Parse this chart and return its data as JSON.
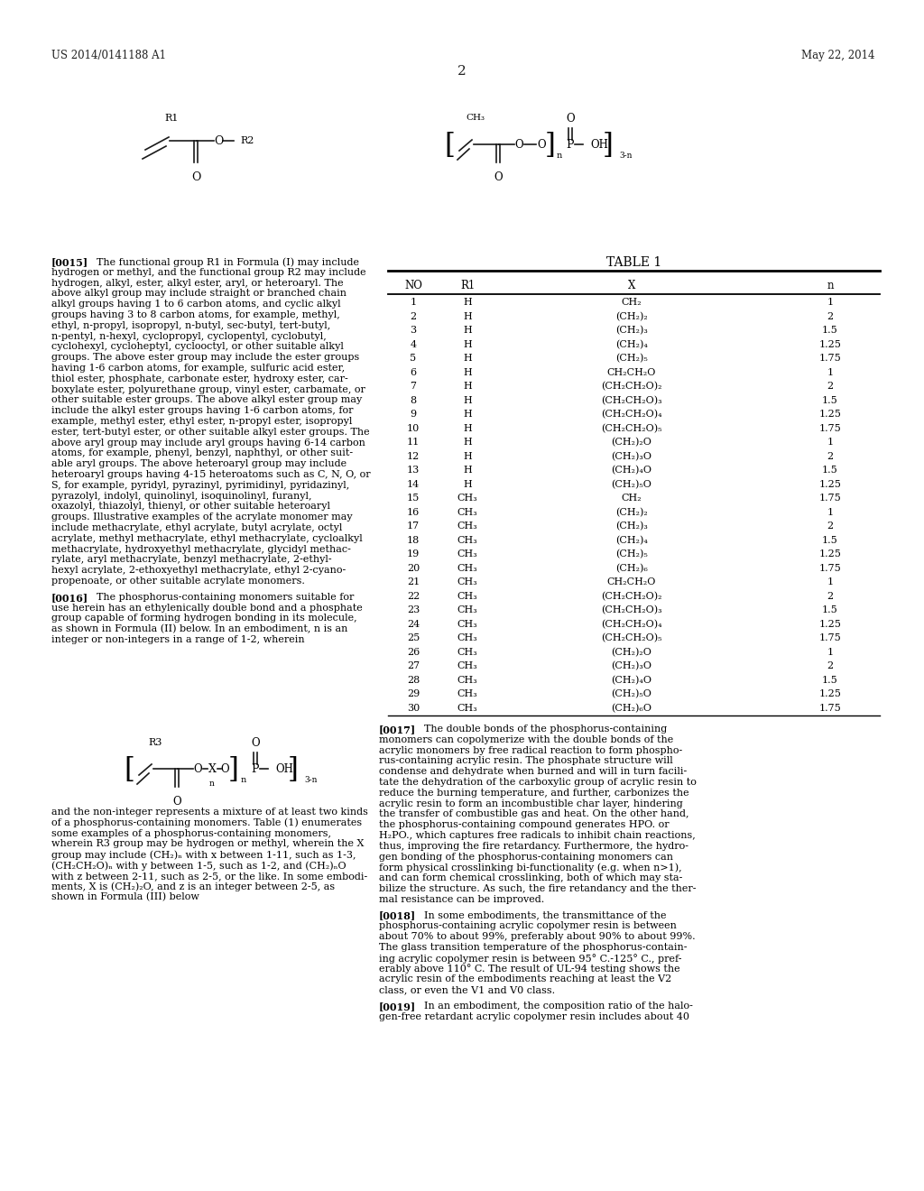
{
  "header_left": "US 2014/0141188 A1",
  "header_right": "May 22, 2014",
  "page_number": "2",
  "background": "#ffffff",
  "table_title": "TABLE 1",
  "table_headers": [
    "NO",
    "R1",
    "X",
    "n"
  ],
  "table_rows": [
    [
      "1",
      "H",
      "CH₂",
      "1"
    ],
    [
      "2",
      "H",
      "(CH₂)₂",
      "2"
    ],
    [
      "3",
      "H",
      "(CH₂)₃",
      "1.5"
    ],
    [
      "4",
      "H",
      "(CH₂)₄",
      "1.25"
    ],
    [
      "5",
      "H",
      "(CH₂)₅",
      "1.75"
    ],
    [
      "6",
      "H",
      "CH₂CH₂O",
      "1"
    ],
    [
      "7",
      "H",
      "(CH₂CH₂O)₂",
      "2"
    ],
    [
      "8",
      "H",
      "(CH₂CH₂O)₃",
      "1.5"
    ],
    [
      "9",
      "H",
      "(CH₂CH₂O)₄",
      "1.25"
    ],
    [
      "10",
      "H",
      "(CH₂CH₂O)₅",
      "1.75"
    ],
    [
      "11",
      "H",
      "(CH₂)₂O",
      "1"
    ],
    [
      "12",
      "H",
      "(CH₂)₃O",
      "2"
    ],
    [
      "13",
      "H",
      "(CH₂)₄O",
      "1.5"
    ],
    [
      "14",
      "H",
      "(CH₂)₅O",
      "1.25"
    ],
    [
      "15",
      "CH₃",
      "CH₂",
      "1.75"
    ],
    [
      "16",
      "CH₃",
      "(CH₂)₂",
      "1"
    ],
    [
      "17",
      "CH₃",
      "(CH₂)₃",
      "2"
    ],
    [
      "18",
      "CH₃",
      "(CH₂)₄",
      "1.5"
    ],
    [
      "19",
      "CH₃",
      "(CH₂)₅",
      "1.25"
    ],
    [
      "20",
      "CH₃",
      "(CH₂)₆",
      "1.75"
    ],
    [
      "21",
      "CH₃",
      "CH₂CH₂O",
      "1"
    ],
    [
      "22",
      "CH₃",
      "(CH₂CH₂O)₂",
      "2"
    ],
    [
      "23",
      "CH₃",
      "(CH₂CH₂O)₃",
      "1.5"
    ],
    [
      "24",
      "CH₃",
      "(CH₂CH₂O)₄",
      "1.25"
    ],
    [
      "25",
      "CH₃",
      "(CH₂CH₂O)₅",
      "1.75"
    ],
    [
      "26",
      "CH₃",
      "(CH₂)₂O",
      "1"
    ],
    [
      "27",
      "CH₃",
      "(CH₂)₃O",
      "2"
    ],
    [
      "28",
      "CH₃",
      "(CH₂)₄O",
      "1.5"
    ],
    [
      "29",
      "CH₃",
      "(CH₂)₅O",
      "1.25"
    ],
    [
      "30",
      "CH₃",
      "(CH₂)₆O",
      "1.75"
    ]
  ],
  "para0015_line1": "[0015]   The functional group R1 in Formula (I) may include",
  "para0015_rest": [
    "hydrogen or methyl, and the functional group R2 may include",
    "hydrogen, alkyl, ester, alkyl ester, aryl, or heteroaryl. The",
    "above alkyl group may include straight or branched chain",
    "alkyl groups having 1 to 6 carbon atoms, and cyclic alkyl",
    "groups having 3 to 8 carbon atoms, for example, methyl,",
    "ethyl, n-propyl, isopropyl, n-butyl, sec-butyl, tert-butyl,",
    "n-pentyl, n-hexyl, cyclopropyl, cyclopentyl, cyclobutyl,",
    "cyclohexyl, cycloheptyl, cyclooctyl, or other suitable alkyl",
    "groups. The above ester group may include the ester groups",
    "having 1-6 carbon atoms, for example, sulfuric acid ester,",
    "thiol ester, phosphate, carbonate ester, hydroxy ester, car-",
    "boxylate ester, polyurethane group, vinyl ester, carbamate, or",
    "other suitable ester groups. The above alkyl ester group may",
    "include the alkyl ester groups having 1-6 carbon atoms, for",
    "example, methyl ester, ethyl ester, n-propyl ester, isopropyl",
    "ester, tert-butyl ester, or other suitable alkyl ester groups. The",
    "above aryl group may include aryl groups having 6-14 carbon",
    "atoms, for example, phenyl, benzyl, naphthyl, or other suit-",
    "able aryl groups. The above heteroaryl group may include",
    "heteroaryl groups having 4-15 heteroatoms such as C, N, O, or",
    "S, for example, pyridyl, pyrazinyl, pyrimidinyl, pyridazinyl,",
    "pyrazolyl, indolyl, quinolinyl, isoquinolinyl, furanyl,",
    "oxazolyl, thiazolyl, thienyl, or other suitable heteroaryl",
    "groups. Illustrative examples of the acrylate monomer may",
    "include methacrylate, ethyl acrylate, butyl acrylate, octyl",
    "acrylate, methyl methacrylate, ethyl methacrylate, cycloalkyl",
    "methacrylate, hydroxyethyl methacrylate, glycidyl methac-",
    "rylate, aryl methacrylate, benzyl methacrylate, 2-ethyl-",
    "hexyl acrylate, 2-ethoxyethyl methacrylate, ethyl 2-cyano-",
    "propenoate, or other suitable acrylate monomers."
  ],
  "para0016_line1": "[0016]   The phosphorus-containing monomers suitable for",
  "para0016_rest": [
    "use herein has an ethylenically double bond and a phosphate",
    "group capable of forming hydrogen bonding in its molecule,",
    "as shown in Formula (II) below. In an embodiment, n is an",
    "integer or non-integers in a range of 1-2, wherein"
  ],
  "para_after_formulaIII": [
    "and the non-integer represents a mixture of at least two kinds",
    "of a phosphorus-containing monomers. Table (1) enumerates",
    "some examples of a phosphorus-containing monomers,",
    "wherein R3 group may be hydrogen or methyl, wherein the X",
    "group may include (CH₂)ₙ with x between 1-11, such as 1-3,",
    "(CH₂CH₂O)ₙ with y between 1-5, such as 1-2, and (CH₂)ₙO",
    "with z between 2-11, such as 2-5, or the like. In some embodi-",
    "ments, X is (CH₂)₂O, and z is an integer between 2-5, as",
    "shown in Formula (III) below"
  ],
  "para0017_line1": "[0017]   The double bonds of the phosphorus-containing",
  "para0017_rest": [
    "monomers can copolymerize with the double bonds of the",
    "acrylic monomers by free radical reaction to form phospho-",
    "rus-containing acrylic resin. The phosphate structure will",
    "condense and dehydrate when burned and will in turn facili-",
    "tate the dehydration of the carboxylic group of acrylic resin to",
    "reduce the burning temperature, and further, carbonizes the",
    "acrylic resin to form an incombustible char layer, hindering",
    "the transfer of combustible gas and heat. On the other hand,",
    "the phosphorus-containing compound generates HPO. or",
    "H₂PO., which captures free radicals to inhibit chain reactions,",
    "thus, improving the fire retardancy. Furthermore, the hydro-",
    "gen bonding of the phosphorus-containing monomers can",
    "form physical crosslinking bi-functionality (e.g. when n>1),",
    "and can form chemical crosslinking, both of which may sta-",
    "bilize the structure. As such, the fire retandancy and the ther-",
    "mal resistance can be improved."
  ],
  "para0018_line1": "[0018]   In some embodiments, the transmittance of the",
  "para0018_rest": [
    "phosphorus-containing acrylic copolymer resin is between",
    "about 70% to about 99%, preferably about 90% to about 99%.",
    "The glass transition temperature of the phosphorus-contain-",
    "ing acrylic copolymer resin is between 95° C.-125° C., pref-",
    "erably above 110° C. The result of UL-94 testing shows the",
    "acrylic resin of the embodiments reaching at least the V2",
    "class, or even the V1 and V0 class."
  ],
  "para0019_line1": "[0019]   In an embodiment, the composition ratio of the halo-",
  "para0019_rest": [
    "gen-free retardant acrylic copolymer resin includes about 40"
  ]
}
